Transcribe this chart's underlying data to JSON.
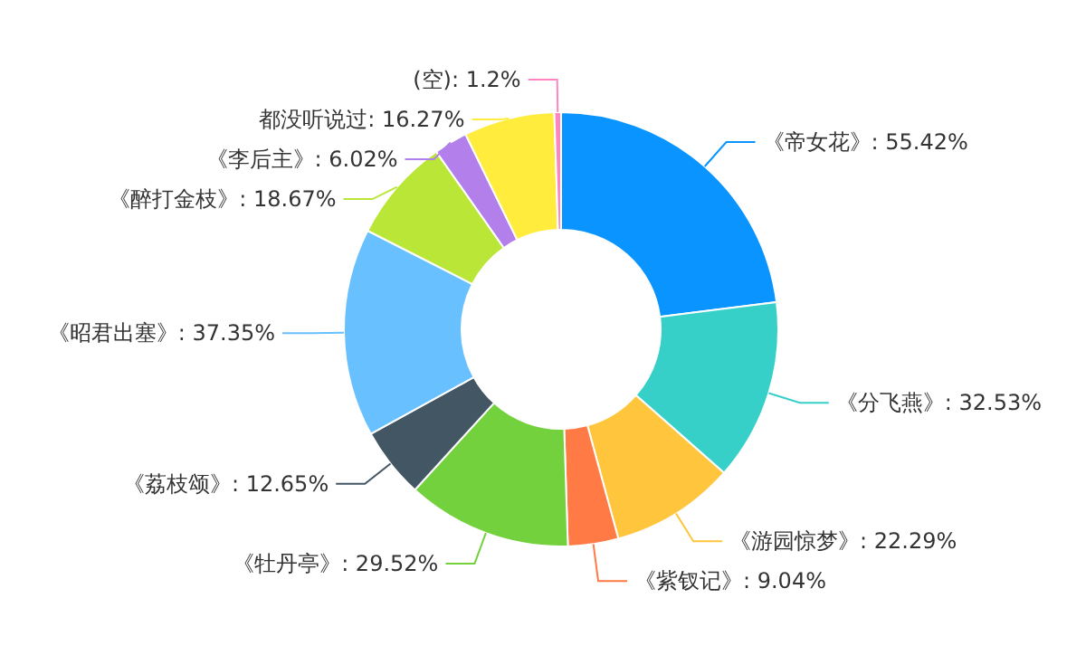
{
  "chart_data": {
    "type": "donut",
    "categories": [
      "《帝女花》",
      "《分飞燕》",
      "《游园惊梦》",
      "《紫钗记》",
      "《牡丹亭》",
      "《荔枝颂》",
      "《昭君出塞》",
      "《醉打金枝》",
      "《李后主》",
      "都没听说过",
      "(空)"
    ],
    "values": [
      55.42,
      32.53,
      22.29,
      9.04,
      29.52,
      12.65,
      37.35,
      18.67,
      6.02,
      16.27,
      1.2
    ],
    "value_labels": [
      "55.42%",
      "32.53%",
      "22.29%",
      "9.04%",
      "29.52%",
      "12.65%",
      "37.35%",
      "18.67%",
      "6.02%",
      "16.27%",
      "1.2%"
    ],
    "colors": [
      "#0a94ff",
      "#36d0c9",
      "#ffc53d",
      "#ff7a45",
      "#73d13d",
      "#435664",
      "#69c0ff",
      "#bae637",
      "#b37feb",
      "#ffec3d",
      "#ff85c0"
    ]
  }
}
